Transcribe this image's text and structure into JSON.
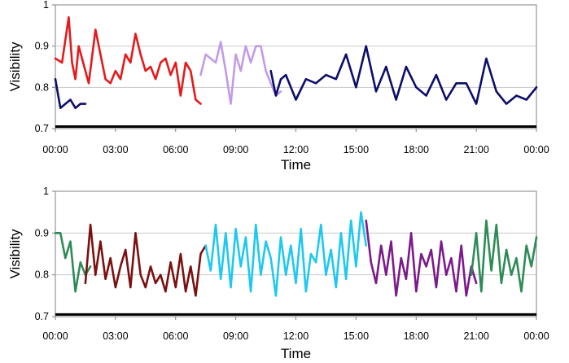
{
  "chart_data": [
    {
      "type": "line",
      "xlabel": "Time",
      "ylabel": "Visibility",
      "ylim": [
        0.7,
        1
      ],
      "yticks": [
        "0.7",
        "0.8",
        "0.9",
        "1"
      ],
      "xlim": [
        "00:00",
        "24:00"
      ],
      "xticks": [
        "00:00",
        "03:00",
        "06:00",
        "09:00",
        "12:00",
        "15:00",
        "18:00",
        "21:00",
        "00:00"
      ],
      "grid": "horizontal",
      "reference_line": 0.705,
      "series": [
        {
          "color": "#e41a1c",
          "x": [
            "00:00",
            "00:20",
            "00:40",
            "00:50",
            "01:00",
            "01:10",
            "01:20",
            "01:40",
            "02:00",
            "02:15",
            "02:30",
            "02:45",
            "03:00",
            "03:15",
            "03:30",
            "03:45",
            "04:00",
            "04:15",
            "04:30",
            "04:45",
            "05:00",
            "05:15",
            "05:30",
            "05:45",
            "06:00",
            "06:15",
            "06:30",
            "06:45",
            "07:00",
            "07:15"
          ],
          "values": [
            0.87,
            0.86,
            0.97,
            0.86,
            0.82,
            0.9,
            0.87,
            0.81,
            0.94,
            0.88,
            0.82,
            0.81,
            0.84,
            0.82,
            0.88,
            0.86,
            0.93,
            0.88,
            0.84,
            0.85,
            0.82,
            0.86,
            0.87,
            0.83,
            0.86,
            0.78,
            0.86,
            0.84,
            0.77,
            0.76
          ]
        },
        {
          "color": "#0d0d6b",
          "x": [
            "00:00",
            "00:15",
            "00:30",
            "00:45",
            "01:00",
            "01:15",
            "01:30"
          ],
          "values": [
            0.82,
            0.75,
            0.76,
            0.77,
            0.75,
            0.76,
            0.76
          ]
        },
        {
          "color": "#c39ae8",
          "x": [
            "07:15",
            "07:30",
            "07:45",
            "08:00",
            "08:15",
            "08:30",
            "08:45",
            "09:00",
            "09:15",
            "09:30",
            "09:45",
            "10:00",
            "10:15",
            "10:30",
            "10:45",
            "11:00",
            "11:15"
          ],
          "values": [
            0.83,
            0.88,
            0.87,
            0.86,
            0.91,
            0.84,
            0.76,
            0.88,
            0.84,
            0.9,
            0.86,
            0.9,
            0.9,
            0.84,
            0.81,
            0.78,
            0.79
          ]
        },
        {
          "color": "#0d0d6b",
          "x": [
            "10:45",
            "11:00",
            "11:15",
            "11:30",
            "12:00",
            "12:30",
            "13:00",
            "13:30",
            "14:00",
            "14:30",
            "15:00",
            "15:30",
            "16:00",
            "16:30",
            "17:00",
            "17:30",
            "18:00",
            "18:30",
            "19:00",
            "19:30",
            "20:00",
            "20:30",
            "21:00",
            "21:30",
            "22:00",
            "22:30",
            "23:00",
            "23:30",
            "24:00"
          ],
          "values": [
            0.84,
            0.78,
            0.82,
            0.83,
            0.77,
            0.82,
            0.81,
            0.83,
            0.82,
            0.88,
            0.8,
            0.9,
            0.79,
            0.85,
            0.77,
            0.85,
            0.8,
            0.78,
            0.83,
            0.77,
            0.81,
            0.81,
            0.76,
            0.87,
            0.79,
            0.76,
            0.78,
            0.77,
            0.8
          ]
        }
      ]
    },
    {
      "type": "line",
      "xlabel": "Time",
      "ylabel": "Visibility",
      "ylim": [
        0.7,
        1
      ],
      "yticks": [
        "0.7",
        "0.8",
        "0.9",
        "1"
      ],
      "xlim": [
        "00:00",
        "24:00"
      ],
      "xticks": [
        "00:00",
        "03:00",
        "06:00",
        "09:00",
        "12:00",
        "15:00",
        "18:00",
        "21:00",
        "00:00"
      ],
      "grid": "horizontal",
      "reference_line": 0.705,
      "series": [
        {
          "color": "#2e8b57",
          "x": [
            "00:00",
            "00:15",
            "00:30",
            "00:45",
            "01:00",
            "01:15",
            "01:30",
            "01:45"
          ],
          "values": [
            0.9,
            0.9,
            0.84,
            0.88,
            0.76,
            0.83,
            0.8,
            0.82
          ]
        },
        {
          "color": "#7b1010",
          "x": [
            "01:30",
            "01:45",
            "02:00",
            "02:15",
            "02:30",
            "02:45",
            "03:00",
            "03:15",
            "03:30",
            "03:45",
            "04:00",
            "04:15",
            "04:30",
            "04:45",
            "05:00",
            "05:15",
            "05:30",
            "05:45",
            "06:00",
            "06:15",
            "06:30",
            "06:45",
            "07:00",
            "07:15",
            "07:30"
          ],
          "values": [
            0.78,
            0.92,
            0.8,
            0.88,
            0.79,
            0.84,
            0.77,
            0.82,
            0.86,
            0.77,
            0.9,
            0.8,
            0.77,
            0.82,
            0.78,
            0.8,
            0.76,
            0.83,
            0.77,
            0.85,
            0.76,
            0.82,
            0.75,
            0.85,
            0.87
          ]
        },
        {
          "color": "#1ec8f0",
          "x": [
            "07:30",
            "07:45",
            "08:00",
            "08:15",
            "08:30",
            "08:45",
            "09:00",
            "09:15",
            "09:30",
            "09:45",
            "10:00",
            "10:15",
            "10:30",
            "10:45",
            "11:00",
            "11:15",
            "11:30",
            "11:45",
            "12:00",
            "12:15",
            "12:30",
            "12:45",
            "13:00",
            "13:15",
            "13:30",
            "13:45",
            "14:00",
            "14:15",
            "14:30",
            "14:45",
            "15:00",
            "15:15",
            "15:30"
          ],
          "values": [
            0.87,
            0.81,
            0.92,
            0.79,
            0.9,
            0.77,
            0.91,
            0.82,
            0.89,
            0.76,
            0.92,
            0.8,
            0.88,
            0.84,
            0.75,
            0.89,
            0.8,
            0.87,
            0.78,
            0.91,
            0.76,
            0.85,
            0.83,
            0.92,
            0.8,
            0.86,
            0.77,
            0.9,
            0.79,
            0.93,
            0.82,
            0.95,
            0.87
          ]
        },
        {
          "color": "#7b1a8a",
          "x": [
            "15:30",
            "15:45",
            "16:00",
            "16:15",
            "16:30",
            "16:45",
            "17:00",
            "17:15",
            "17:30",
            "17:45",
            "18:00",
            "18:15",
            "18:30",
            "18:45",
            "19:00",
            "19:15",
            "19:30",
            "19:45",
            "20:00",
            "20:15",
            "20:30",
            "20:45",
            "21:00"
          ],
          "values": [
            0.93,
            0.83,
            0.78,
            0.87,
            0.8,
            0.88,
            0.75,
            0.84,
            0.79,
            0.9,
            0.76,
            0.85,
            0.82,
            0.86,
            0.77,
            0.88,
            0.8,
            0.84,
            0.76,
            0.87,
            0.75,
            0.82,
            0.78
          ]
        },
        {
          "color": "#2e8b57",
          "x": [
            "20:45",
            "21:00",
            "21:15",
            "21:30",
            "21:45",
            "22:00",
            "22:15",
            "22:30",
            "22:45",
            "23:00",
            "23:15",
            "23:30",
            "23:45",
            "24:00"
          ],
          "values": [
            0.8,
            0.9,
            0.76,
            0.93,
            0.81,
            0.92,
            0.78,
            0.86,
            0.8,
            0.84,
            0.76,
            0.87,
            0.82,
            0.89
          ]
        }
      ]
    }
  ]
}
